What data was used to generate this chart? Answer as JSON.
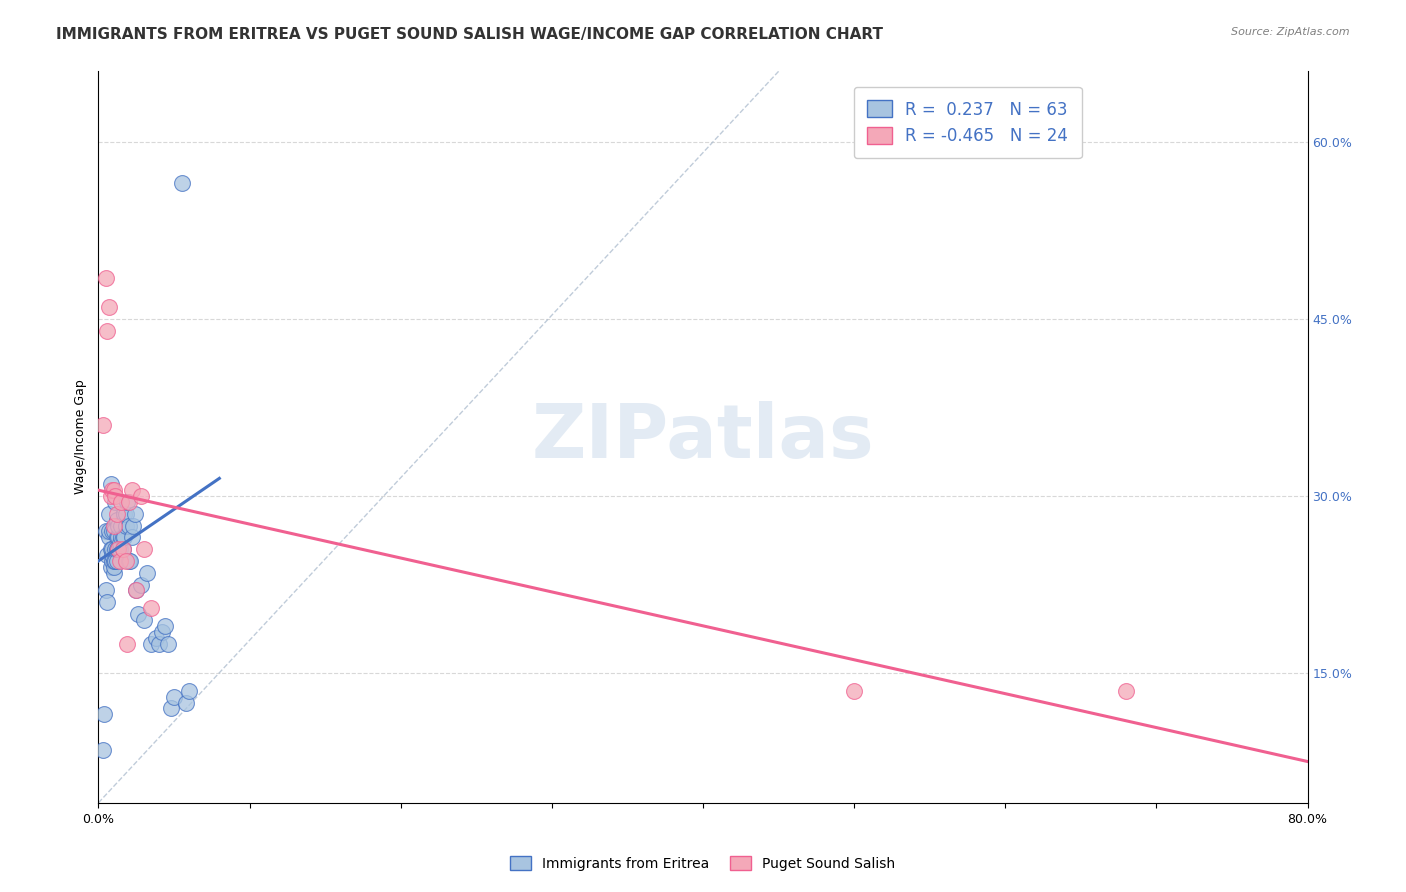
{
  "title": "IMMIGRANTS FROM ERITREA VS PUGET SOUND SALISH WAGE/INCOME GAP CORRELATION CHART",
  "source": "Source: ZipAtlas.com",
  "ylabel": "Wage/Income Gap",
  "xlim": [
    0.0,
    0.8
  ],
  "ylim": [
    0.04,
    0.66
  ],
  "xticks": [
    0.0,
    0.1,
    0.2,
    0.3,
    0.4,
    0.5,
    0.6,
    0.7,
    0.8
  ],
  "xticklabels": [
    "0.0%",
    "",
    "",
    "",
    "",
    "",
    "",
    "",
    "80.0%"
  ],
  "yticks_right": [
    0.15,
    0.3,
    0.45,
    0.6
  ],
  "ytick_right_labels": [
    "15.0%",
    "30.0%",
    "45.0%",
    "60.0%"
  ],
  "blue_color": "#a8c4e0",
  "pink_color": "#f4a8b8",
  "blue_line_color": "#4472c4",
  "pink_line_color": "#f06090",
  "ref_line_color": "#b0bfd0",
  "blue_scatter_x": [
    0.003,
    0.004,
    0.005,
    0.005,
    0.006,
    0.006,
    0.007,
    0.007,
    0.007,
    0.008,
    0.008,
    0.008,
    0.009,
    0.009,
    0.009,
    0.009,
    0.01,
    0.01,
    0.01,
    0.01,
    0.011,
    0.011,
    0.011,
    0.012,
    0.012,
    0.012,
    0.012,
    0.013,
    0.013,
    0.013,
    0.014,
    0.014,
    0.015,
    0.015,
    0.016,
    0.016,
    0.017,
    0.017,
    0.018,
    0.018,
    0.019,
    0.02,
    0.02,
    0.021,
    0.022,
    0.023,
    0.024,
    0.025,
    0.026,
    0.028,
    0.03,
    0.032,
    0.035,
    0.038,
    0.04,
    0.042,
    0.044,
    0.046,
    0.048,
    0.05,
    0.055,
    0.058,
    0.06
  ],
  "blue_scatter_y": [
    0.085,
    0.115,
    0.22,
    0.27,
    0.21,
    0.25,
    0.265,
    0.27,
    0.285,
    0.24,
    0.255,
    0.31,
    0.245,
    0.25,
    0.255,
    0.27,
    0.235,
    0.24,
    0.245,
    0.27,
    0.245,
    0.255,
    0.295,
    0.245,
    0.255,
    0.265,
    0.28,
    0.255,
    0.265,
    0.275,
    0.255,
    0.26,
    0.265,
    0.275,
    0.255,
    0.265,
    0.265,
    0.285,
    0.275,
    0.285,
    0.295,
    0.245,
    0.275,
    0.245,
    0.265,
    0.275,
    0.285,
    0.22,
    0.2,
    0.225,
    0.195,
    0.235,
    0.175,
    0.18,
    0.175,
    0.185,
    0.19,
    0.175,
    0.12,
    0.13,
    0.565,
    0.125,
    0.135
  ],
  "pink_scatter_x": [
    0.003,
    0.005,
    0.006,
    0.007,
    0.008,
    0.009,
    0.01,
    0.01,
    0.011,
    0.012,
    0.013,
    0.014,
    0.015,
    0.016,
    0.018,
    0.019,
    0.02,
    0.022,
    0.025,
    0.028,
    0.03,
    0.035,
    0.5,
    0.68
  ],
  "pink_scatter_y": [
    0.36,
    0.485,
    0.44,
    0.46,
    0.3,
    0.305,
    0.275,
    0.305,
    0.3,
    0.285,
    0.255,
    0.245,
    0.295,
    0.255,
    0.245,
    0.175,
    0.295,
    0.305,
    0.22,
    0.3,
    0.255,
    0.205,
    0.135,
    0.135
  ],
  "blue_trend_x": [
    0.0,
    0.08
  ],
  "blue_trend_y": [
    0.245,
    0.315
  ],
  "pink_trend_x": [
    0.0,
    0.8
  ],
  "pink_trend_y": [
    0.305,
    0.075
  ],
  "ref_line_x": [
    0.0,
    0.45
  ],
  "ref_line_y": [
    0.04,
    0.66
  ],
  "watermark_text": "ZIPatlas",
  "title_fontsize": 11,
  "axis_label_fontsize": 9,
  "tick_fontsize": 9,
  "legend_fontsize": 12
}
